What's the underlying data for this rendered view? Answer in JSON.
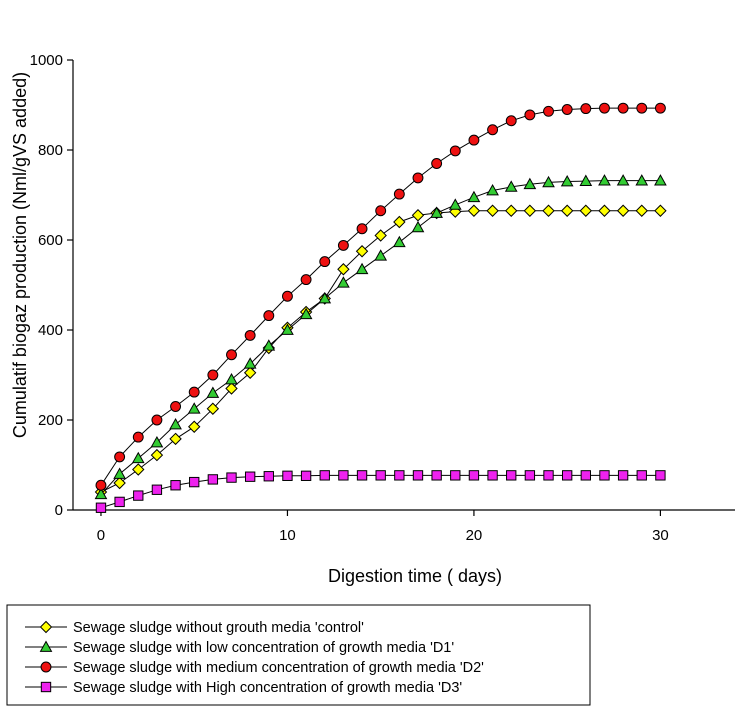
{
  "chart_data": {
    "type": "line",
    "title": "",
    "xlabel": "Digestion time ( days)",
    "ylabel": "Cumulatif biogaz production (Nml/gVS added)",
    "xlim": [
      -1.5,
      34
    ],
    "ylim": [
      0,
      1000
    ],
    "x_ticks": [
      0,
      10,
      20,
      30
    ],
    "y_ticks": [
      0,
      200,
      400,
      600,
      800,
      1000
    ],
    "x_tick_labels": [
      "0",
      "10",
      "20",
      "30"
    ],
    "y_tick_labels": [
      "0",
      "200",
      "400",
      "600",
      "800",
      "1000"
    ],
    "grid": false,
    "legend_position": "bottom-outside",
    "x": [
      0,
      1,
      2,
      3,
      4,
      5,
      6,
      7,
      8,
      9,
      10,
      11,
      12,
      13,
      14,
      15,
      16,
      17,
      18,
      19,
      20,
      21,
      22,
      23,
      24,
      25,
      26,
      27,
      28,
      29,
      30
    ],
    "series": [
      {
        "name": "Sewage sludge without grouth media 'control'",
        "marker": "diamond",
        "color": "#FFFF00",
        "values": [
          40,
          60,
          90,
          122,
          158,
          185,
          225,
          270,
          305,
          360,
          405,
          440,
          470,
          535,
          575,
          610,
          640,
          655,
          660,
          663,
          665,
          665,
          665,
          665,
          665,
          665,
          665,
          665,
          665,
          665,
          665
        ]
      },
      {
        "name": "Sewage sludge with low concentration of growth media 'D1'",
        "marker": "triangle",
        "color": "#33CC33",
        "values": [
          35,
          80,
          115,
          150,
          190,
          225,
          260,
          290,
          325,
          365,
          400,
          435,
          470,
          505,
          535,
          565,
          595,
          628,
          660,
          678,
          695,
          710,
          718,
          724,
          728,
          730,
          731,
          732,
          732,
          732,
          732
        ]
      },
      {
        "name": "Sewage sludge with medium concentration of growth media 'D2'",
        "marker": "circle",
        "color": "#EE1111",
        "values": [
          55,
          118,
          162,
          200,
          230,
          262,
          300,
          345,
          388,
          432,
          475,
          512,
          552,
          588,
          625,
          665,
          702,
          738,
          770,
          798,
          822,
          845,
          865,
          878,
          886,
          890,
          892,
          893,
          893,
          893,
          893
        ]
      },
      {
        "name": "Sewage sludge with High concentration of growth media 'D3'",
        "marker": "square",
        "color": "#EE22EE",
        "values": [
          5,
          18,
          32,
          45,
          55,
          62,
          68,
          72,
          74,
          75,
          76,
          76,
          77,
          77,
          77,
          77,
          77,
          77,
          77,
          77,
          77,
          77,
          77,
          77,
          77,
          77,
          77,
          77,
          77,
          77,
          77
        ]
      }
    ]
  }
}
